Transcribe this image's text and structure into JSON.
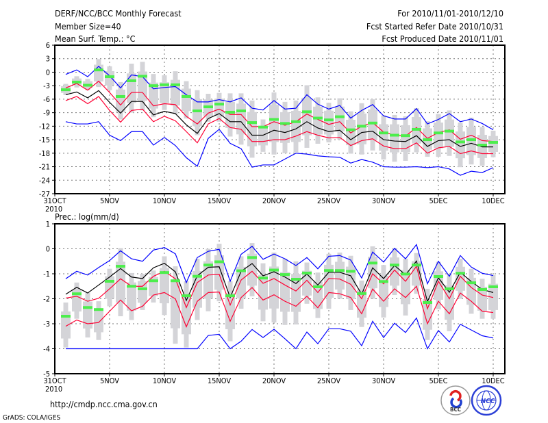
{
  "header": {
    "title": "DERF/NCC/BCC Monthly Forecast",
    "member_size": "Member Size=40",
    "period": "For 2010/11/01-2010/12/10",
    "started": "Fcst Started Refer Date 2010/10/31",
    "produced": "Fcst Produced Date 2010/11/01"
  },
  "footer": {
    "url": "http://cmdp.ncc.cma.gov.cn",
    "grads": "GrADS: COLA/IGES",
    "logo_bcc": "BCC",
    "logo_ncc": "NCC"
  },
  "colors": {
    "envelope": "#0000ff",
    "spread": "#ff0033",
    "mean": "#000000",
    "member": "#4cee4c",
    "box": "#d4d4d8"
  },
  "chart_data": [
    {
      "type": "line",
      "title": "Mean Surf. Temp.: °C",
      "xlabel": "",
      "ylabel": "",
      "ylim": [
        -27,
        6
      ],
      "yticks": [
        "6",
        "3",
        "0",
        "-3",
        "-6",
        "-9",
        "-12",
        "-15",
        "-18",
        "-21",
        "-24",
        "-27"
      ],
      "ytick_values": [
        6,
        3,
        0,
        -3,
        -6,
        -9,
        -12,
        -15,
        -18,
        -21,
        -24,
        -27
      ],
      "xticks": [
        "31OCT",
        "5NOV",
        "10NOV",
        "15NOV",
        "20NOV",
        "25NOV",
        "30NOV",
        "5DEC",
        "10DEC"
      ],
      "xtick_days": [
        0,
        5,
        10,
        15,
        20,
        25,
        30,
        35,
        40
      ],
      "xtick_year": "2010",
      "grid": true,
      "days": [
        1,
        2,
        3,
        4,
        5,
        6,
        7,
        8,
        9,
        10,
        11,
        12,
        13,
        14,
        15,
        16,
        17,
        18,
        19,
        20,
        21,
        22,
        23,
        24,
        25,
        26,
        27,
        28,
        29,
        30,
        31,
        32,
        33,
        34,
        35,
        36,
        37,
        38,
        39,
        40
      ],
      "series": [
        {
          "name": "max",
          "color": "#0000ff",
          "values": [
            -0.5,
            0.5,
            -1.0,
            1.3,
            -0.8,
            -3.5,
            -0.6,
            -1.0,
            -3.7,
            -3.4,
            -3.2,
            -5.0,
            -6.6,
            -6.6,
            -6.1,
            -6.6,
            -5.7,
            -8.0,
            -8.4,
            -6.3,
            -8.2,
            -8.0,
            -5.0,
            -7.1,
            -8.2,
            -7.4,
            -10.2,
            -8.5,
            -7.2,
            -9.7,
            -10.4,
            -10.4,
            -8.1,
            -11.5,
            -10.5,
            -9.2,
            -11.0,
            -10.4,
            -11.4,
            -12.8
          ]
        },
        {
          "name": "mean+sd",
          "color": "#ff0033",
          "values": [
            -3.5,
            -2.5,
            -4.0,
            -2.0,
            -4.5,
            -7.3,
            -4.5,
            -4.5,
            -7.5,
            -7.0,
            -7.2,
            -9.8,
            -11.5,
            -9.1,
            -8.2,
            -9.4,
            -9.4,
            -12.1,
            -12.1,
            -11.0,
            -11.8,
            -11.0,
            -9.3,
            -10.5,
            -11.6,
            -11.0,
            -13.5,
            -12.0,
            -11.2,
            -13.3,
            -14.0,
            -14.2,
            -12.3,
            -14.7,
            -13.4,
            -12.8,
            -14.9,
            -14.0,
            -15.2,
            -15.4
          ]
        },
        {
          "name": "mean",
          "color": "#000000",
          "values": [
            -5.0,
            -4.4,
            -5.7,
            -4.1,
            -6.7,
            -9.1,
            -6.5,
            -6.5,
            -9.5,
            -8.7,
            -9.2,
            -11.7,
            -13.6,
            -10.3,
            -9.2,
            -11.0,
            -11.0,
            -14.0,
            -14.0,
            -12.9,
            -13.4,
            -12.6,
            -11.0,
            -12.4,
            -13.2,
            -12.9,
            -15.0,
            -13.4,
            -13.1,
            -15.0,
            -15.3,
            -15.4,
            -14.1,
            -16.5,
            -15.2,
            -15.0,
            -16.5,
            -15.8,
            -16.6,
            -16.6
          ]
        },
        {
          "name": "mean-sd",
          "color": "#ff0033",
          "values": [
            -6.3,
            -5.4,
            -7.0,
            -5.4,
            -8.5,
            -11.1,
            -8.5,
            -8.2,
            -11.0,
            -9.8,
            -10.8,
            -13.2,
            -15.7,
            -11.5,
            -10.3,
            -12.3,
            -12.7,
            -15.4,
            -15.4,
            -15.0,
            -15.0,
            -14.2,
            -13.2,
            -14.0,
            -14.6,
            -14.5,
            -16.3,
            -15.2,
            -14.8,
            -16.4,
            -17.0,
            -17.0,
            -15.7,
            -18.0,
            -16.8,
            -16.5,
            -18.1,
            -17.5,
            -18.1,
            -18.1
          ]
        },
        {
          "name": "min",
          "color": "#0000ff",
          "values": [
            -11.0,
            -11.5,
            -11.5,
            -11.0,
            -14.0,
            -15.2,
            -13.2,
            -13.2,
            -16.2,
            -14.5,
            -16.3,
            -19.0,
            -20.9,
            -14.7,
            -12.7,
            -15.8,
            -17.0,
            -21.1,
            -20.6,
            -20.6,
            -19.3,
            -18.0,
            -18.2,
            -18.6,
            -18.8,
            -18.9,
            -20.2,
            -19.4,
            -20.0,
            -21.0,
            -21.1,
            -21.1,
            -21.0,
            -21.2,
            -21.0,
            -21.5,
            -22.9,
            -22.0,
            -22.3,
            -21.2
          ]
        }
      ],
      "markers": [
        -3.9,
        -2.2,
        -2.9,
        0.5,
        -1.0,
        -5.4,
        -1.9,
        -0.9,
        -3.0,
        -2.8,
        -2.8,
        -5.4,
        -8.6,
        -7.7,
        -7.1,
        -8.9,
        -8.6,
        -11.2,
        -12.2,
        -10.5,
        -11.4,
        -11.0,
        -8.8,
        -10.2,
        -10.6,
        -9.9,
        -12.8,
        -12.0,
        -11.3,
        -13.5,
        -14.0,
        -14.1,
        -12.7,
        -15.0,
        -13.5,
        -13.1,
        -15.5,
        -15.0,
        -16.2,
        -15.6
      ],
      "range_hi": [
        -2.6,
        -0.9,
        -1.5,
        2.9,
        1.3,
        -2.2,
        1.9,
        2.3,
        -0.4,
        -0.7,
        0.2,
        -2.0,
        -4.0,
        -4.8,
        -4.6,
        -4.7,
        -4.7,
        -6.3,
        -10.5,
        -4.5,
        -6.6,
        -6.3,
        -2.9,
        -5.6,
        -6.8,
        -5.8,
        -8.7,
        -6.9,
        -6.0,
        -9.6,
        -9.5,
        -9.8,
        -8.0,
        -10.9,
        -9.3,
        -8.5,
        -11.2,
        -10.1,
        -12.2,
        -13.0
      ],
      "range_lo": [
        -5.1,
        -3.4,
        -4.0,
        -3.3,
        -4.0,
        -10.5,
        -9.0,
        -8.5,
        -10.0,
        -8.4,
        -9.3,
        -10.3,
        -14.0,
        -11.0,
        -11.0,
        -14.3,
        -16.1,
        -19.0,
        -17.7,
        -18.3,
        -18.0,
        -17.8,
        -16.8,
        -15.9,
        -15.6,
        -15.0,
        -18.1,
        -18.3,
        -17.4,
        -19.4,
        -19.9,
        -19.7,
        -17.8,
        -18.8,
        -18.8,
        -18.6,
        -21.1,
        -20.5,
        -20.8,
        -18.9
      ]
    },
    {
      "type": "line",
      "title": "Prec.: log(mm/d)",
      "xlabel": "",
      "ylabel": "",
      "ylim": [
        -5,
        1
      ],
      "yticks": [
        "1",
        "0",
        "-1",
        "-2",
        "-3",
        "-4",
        "-5"
      ],
      "ytick_values": [
        1,
        0,
        -1,
        -2,
        -3,
        -4,
        -5
      ],
      "xticks": [
        "31OCT",
        "5NOV",
        "10NOV",
        "15NOV",
        "20NOV",
        "25NOV",
        "30NOV",
        "5DEC",
        "10DEC"
      ],
      "xtick_days": [
        0,
        5,
        10,
        15,
        20,
        25,
        30,
        35,
        40
      ],
      "xtick_year": "2010",
      "grid": true,
      "days": [
        1,
        2,
        3,
        4,
        5,
        6,
        7,
        8,
        9,
        10,
        11,
        12,
        13,
        14,
        15,
        16,
        17,
        18,
        19,
        20,
        21,
        22,
        23,
        24,
        25,
        26,
        27,
        28,
        29,
        30,
        31,
        32,
        33,
        34,
        35,
        36,
        37,
        38,
        39,
        40
      ],
      "series": [
        {
          "name": "max",
          "color": "#0000ff",
          "values": [
            -1.2,
            -0.9,
            -1.05,
            -0.75,
            -0.47,
            -0.08,
            -0.4,
            -0.5,
            -0.05,
            0.05,
            -0.2,
            -1.35,
            -0.35,
            -0.1,
            -0.02,
            -1.3,
            -0.22,
            0.1,
            -0.42,
            -0.21,
            -0.4,
            -0.67,
            -0.35,
            -0.8,
            -0.3,
            -0.27,
            -0.45,
            -1.17,
            -0.13,
            -0.53,
            0.02,
            -0.4,
            0.17,
            -1.4,
            -0.5,
            -1.1,
            -0.27,
            -0.73,
            -0.98,
            -1.07
          ]
        },
        {
          "name": "mean+sd",
          "color": "#ff0033",
          "values": [
            -1.97,
            -1.9,
            -2.1,
            -1.98,
            -1.6,
            -1.2,
            -1.5,
            -1.5,
            -1.1,
            -0.9,
            -1.2,
            -2.35,
            -1.35,
            -1.05,
            -1.02,
            -2.25,
            -1.25,
            -0.9,
            -1.38,
            -1.19,
            -1.45,
            -1.69,
            -1.26,
            -1.75,
            -1.19,
            -1.21,
            -1.42,
            -2.0,
            -1.0,
            -1.4,
            -0.85,
            -1.3,
            -0.7,
            -2.4,
            -1.3,
            -2.0,
            -1.1,
            -1.55,
            -1.85,
            -1.95
          ]
        },
        {
          "name": "mean",
          "color": "#000000",
          "values": [
            -1.82,
            -1.54,
            -1.77,
            -1.45,
            -1.13,
            -0.79,
            -1.13,
            -1.19,
            -0.76,
            -0.58,
            -0.92,
            -2.07,
            -1.08,
            -0.74,
            -0.72,
            -1.95,
            -0.9,
            -0.59,
            -1.08,
            -0.92,
            -1.13,
            -1.39,
            -1.01,
            -1.45,
            -0.94,
            -0.94,
            -1.08,
            -1.82,
            -0.76,
            -1.19,
            -0.67,
            -1.04,
            -0.49,
            -2.11,
            -1.16,
            -1.74,
            -0.94,
            -1.31,
            -1.63,
            -1.75
          ]
        },
        {
          "name": "mean-sd",
          "color": "#ff0033",
          "values": [
            -3.1,
            -2.85,
            -3.0,
            -2.95,
            -2.5,
            -2.05,
            -2.48,
            -2.3,
            -1.85,
            -1.75,
            -2.0,
            -3.12,
            -2.1,
            -1.75,
            -1.73,
            -2.9,
            -1.95,
            -1.55,
            -2.05,
            -1.84,
            -2.1,
            -2.3,
            -1.9,
            -2.36,
            -1.75,
            -1.8,
            -1.95,
            -2.6,
            -1.61,
            -2.1,
            -1.6,
            -1.95,
            -1.5,
            -3.0,
            -2.1,
            -2.6,
            -1.77,
            -2.1,
            -2.5,
            -2.55
          ]
        },
        {
          "name": "min",
          "color": "#0000ff",
          "values": [
            -4.0,
            -4.0,
            -4.0,
            -4.0,
            -4.0,
            -4.0,
            -4.0,
            -4.0,
            -4.0,
            -4.0,
            -4.0,
            -4.0,
            -4.0,
            -3.47,
            -3.42,
            -4.0,
            -3.7,
            -3.23,
            -3.55,
            -3.22,
            -3.6,
            -4.0,
            -3.33,
            -3.8,
            -3.2,
            -3.2,
            -3.3,
            -3.88,
            -2.9,
            -3.55,
            -2.98,
            -3.35,
            -2.77,
            -4.0,
            -3.27,
            -3.73,
            -3.02,
            -3.25,
            -3.48,
            -3.57
          ]
        }
      ],
      "markers": [
        -2.7,
        -1.8,
        -2.35,
        -2.43,
        -1.3,
        -0.7,
        -1.5,
        -1.6,
        -1.28,
        -0.95,
        -1.28,
        -1.88,
        -1.1,
        -0.65,
        -0.52,
        -1.88,
        -0.88,
        -0.35,
        -1.17,
        -0.85,
        -1.03,
        -1.22,
        -0.97,
        -1.52,
        -0.87,
        -0.87,
        -0.9,
        -1.79,
        -0.57,
        -1.31,
        -0.65,
        -1.01,
        -0.65,
        -2.15,
        -1.11,
        -1.6,
        -0.98,
        -1.36,
        -1.63,
        -1.52
      ],
      "range_hi": [
        -2.15,
        -1.35,
        -1.75,
        -2.1,
        -0.8,
        0.03,
        -0.97,
        -1.0,
        -0.87,
        -0.3,
        -0.7,
        -1.3,
        -0.4,
        0.0,
        0.2,
        -1.3,
        -0.3,
        0.23,
        -0.58,
        -0.15,
        -0.4,
        -0.5,
        -0.55,
        -0.95,
        -0.2,
        -0.15,
        -0.28,
        -1.27,
        0.1,
        -0.65,
        0.03,
        -0.4,
        -0.17,
        -1.6,
        -0.52,
        -1.0,
        -0.4,
        -0.8,
        -1.2,
        -1.05
      ],
      "range_lo": [
        -3.95,
        -2.8,
        -3.55,
        -3.65,
        -2.3,
        -2.7,
        -2.85,
        -2.45,
        -2.15,
        -2.65,
        -3.8,
        -3.95,
        -2.85,
        -2.5,
        -2.1,
        -3.7,
        -2.4,
        -1.9,
        -2.9,
        -2.95,
        -3.05,
        -3.03,
        -2.2,
        -2.77,
        -2.4,
        -2.0,
        -2.45,
        -3.13,
        -2.0,
        -2.75,
        -1.85,
        -2.67,
        -1.8,
        -3.65,
        -2.42,
        -3.3,
        -2.0,
        -2.6,
        -2.8,
        -2.8
      ]
    }
  ]
}
